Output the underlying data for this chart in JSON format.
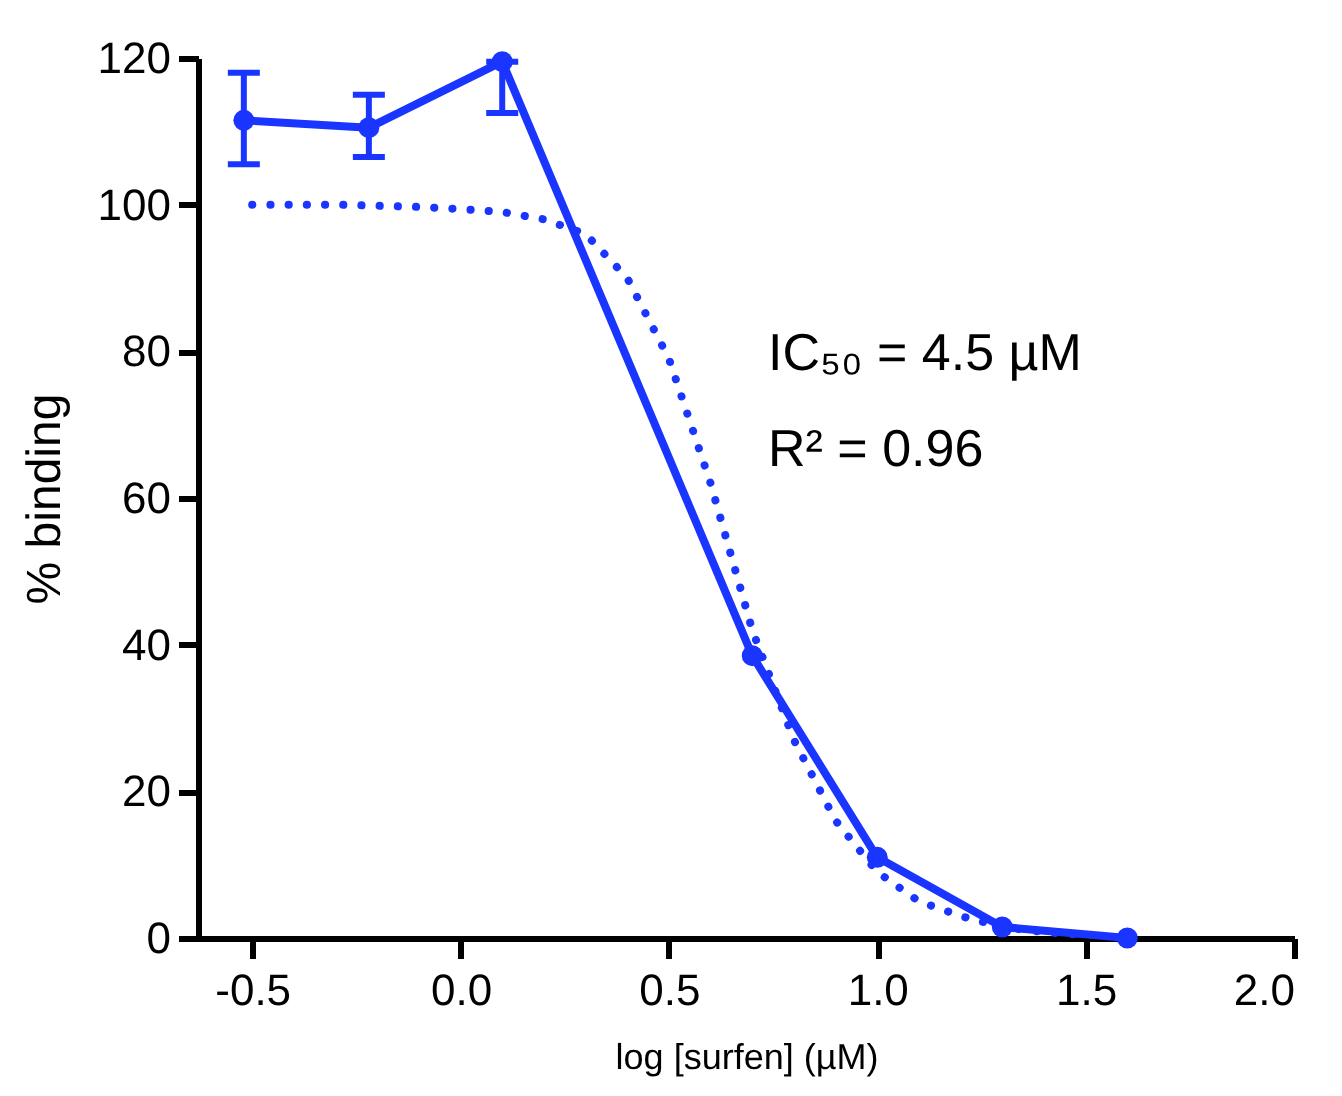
{
  "chart_data": {
    "type": "line",
    "xlabel": "log [surfen] (µM)",
    "ylabel": "% binding",
    "annotations": [
      "IC₅₀ = 4.5 µM",
      "R² = 0.96"
    ],
    "xlim": [
      -0.63,
      2.0
    ],
    "xticks": [
      {
        "value": -0.5,
        "label": "-0.5"
      },
      {
        "value": 0,
        "label": "0.0"
      },
      0.5,
      {
        "value": 1,
        "label": "1.0"
      },
      1.5,
      {
        "value": 2,
        "label": "2.0"
      }
    ],
    "ylim": [
      0,
      120
    ],
    "yticks": [
      0,
      20,
      40,
      60,
      80,
      100,
      120
    ],
    "grid": false,
    "legend": false,
    "series": [
      {
        "color": "#1a35ff",
        "marker": "circle",
        "line_style": "solid",
        "x": [
          -0.52,
          -0.22,
          0.1,
          0.7,
          1.0,
          1.3,
          1.6
        ],
        "values": [
          111.5,
          110.5,
          119.5,
          38.5,
          11,
          1.5,
          0
        ],
        "errors": [
          [
            105.5,
            118
          ],
          [
            106.5,
            115
          ],
          [
            112.5,
            119.5
          ],
          null,
          null,
          null,
          null
        ]
      },
      {
        "color": "#1a35ff",
        "marker": "none",
        "line_style": "dotted",
        "x": [
          -0.5,
          -0.3,
          -0.1,
          0.0,
          0.1,
          0.2,
          0.3,
          0.4,
          0.5,
          0.6,
          0.7,
          0.8,
          0.9,
          1.0,
          1.1,
          1.2,
          1.3,
          1.4,
          1.5
        ],
        "values": [
          100,
          100,
          99.7,
          99.4,
          99,
          98,
          96,
          90,
          79,
          62,
          42,
          27,
          16,
          9,
          5,
          3,
          1.5,
          0.8,
          0.4
        ]
      }
    ]
  }
}
